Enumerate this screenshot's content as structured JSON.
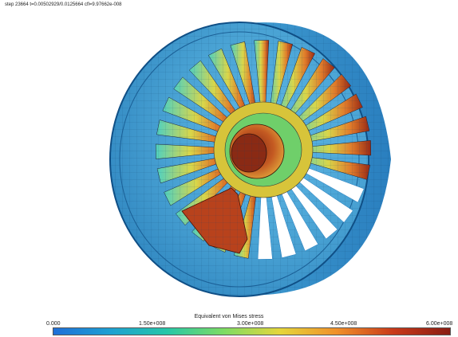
{
  "header": {
    "step_text": "step 23664  t=0.00502929/0.0125664  cfl=9.97662e-008"
  },
  "legend": {
    "title": "Equivalent von Mises stress",
    "ticks": [
      "0.000",
      "1.50e+008",
      "3.00e+008",
      "4.50e+008",
      "6.00e+008"
    ],
    "colors": [
      "#1f6fd8",
      "#1ea0d2",
      "#26c7a8",
      "#7ddc64",
      "#e5d63b",
      "#f0902a",
      "#c83a1a",
      "#8a1c12"
    ]
  },
  "scene": {
    "subject": "turbine fan with casing, stress contour",
    "blade_count": 28
  }
}
